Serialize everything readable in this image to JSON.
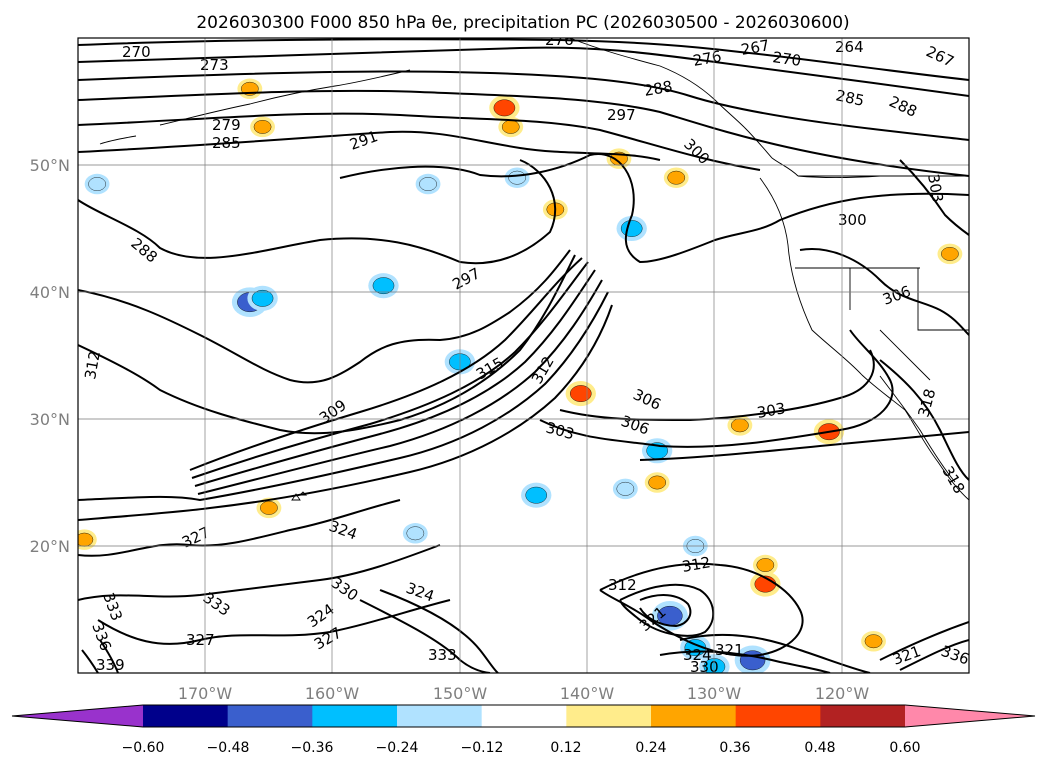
{
  "title": "2026030300 F000 850 hPa θe, precipitation PC (2026030500 - 2026030600)",
  "chart_data": {
    "type": "contour-map",
    "title": "2026030300 F000 850 hPa θe, precipitation PC (2026030500 - 2026030600)",
    "variable_contours": "850 hPa θe (K)",
    "variable_fill": "precipitation PC",
    "lon_range": [
      -180,
      -110
    ],
    "lat_range": [
      10,
      60
    ],
    "x_ticks": [
      "170°W",
      "160°W",
      "150°W",
      "140°W",
      "130°W",
      "120°W"
    ],
    "x_tick_values": [
      -170,
      -160,
      -150,
      -140,
      -130,
      -120
    ],
    "y_ticks": [
      "50°N",
      "40°N",
      "30°N",
      "20°N"
    ],
    "y_tick_values": [
      50,
      40,
      30,
      20
    ],
    "colorbar": {
      "ticks": [
        "−0.60",
        "−0.48",
        "−0.36",
        "−0.24",
        "−0.12",
        "0.12",
        "0.24",
        "0.36",
        "0.48",
        "0.60"
      ],
      "tick_values": [
        -0.6,
        -0.48,
        -0.36,
        -0.24,
        -0.12,
        0.12,
        0.24,
        0.36,
        0.48,
        0.6
      ],
      "colors": [
        "#9932CC",
        "#00008B",
        "#3A5FCD",
        "#00BFFF",
        "#B0E2FF",
        "#FFFFFF",
        "#FFEC8B",
        "#FFA500",
        "#FF4500",
        "#B22222",
        "#FF88AA"
      ],
      "extend": "both"
    },
    "contour_labels": [
      "270",
      "273",
      "276",
      "279",
      "285",
      "288",
      "291",
      "297",
      "300",
      "303",
      "306",
      "309",
      "312",
      "315",
      "318",
      "321",
      "324",
      "327",
      "330",
      "333",
      "336",
      "339",
      "264",
      "267"
    ],
    "precip_blobs": [
      {
        "lon": -178.5,
        "lat": 48.5,
        "value": -0.24
      },
      {
        "lon": -166.5,
        "lat": 39.2,
        "value": -0.48
      },
      {
        "lon": -165.5,
        "lat": 39.5,
        "value": -0.36
      },
      {
        "lon": -156,
        "lat": 40.5,
        "value": -0.36
      },
      {
        "lon": -152.5,
        "lat": 48.5,
        "value": -0.24
      },
      {
        "lon": -145.5,
        "lat": 49,
        "value": -0.24
      },
      {
        "lon": -136.5,
        "lat": 45,
        "value": -0.36
      },
      {
        "lon": -144,
        "lat": 24,
        "value": -0.36
      },
      {
        "lon": -137,
        "lat": 24.5,
        "value": -0.24
      },
      {
        "lon": -134.5,
        "lat": 27.5,
        "value": -0.36
      },
      {
        "lon": -131.5,
        "lat": 20,
        "value": -0.24
      },
      {
        "lon": -133.5,
        "lat": 14.5,
        "value": -0.48
      },
      {
        "lon": -131.5,
        "lat": 12,
        "value": -0.36
      },
      {
        "lon": -127,
        "lat": 11,
        "value": -0.48
      },
      {
        "lon": -130,
        "lat": 10.5,
        "value": -0.36
      },
      {
        "lon": -150,
        "lat": 34.5,
        "value": -0.36
      },
      {
        "lon": -153.5,
        "lat": 21,
        "value": -0.24
      },
      {
        "lon": -146.5,
        "lat": 54.5,
        "value": 0.36
      },
      {
        "lon": -146,
        "lat": 53,
        "value": 0.24
      },
      {
        "lon": -166.5,
        "lat": 56,
        "value": 0.24
      },
      {
        "lon": -165.5,
        "lat": 53,
        "value": 0.24
      },
      {
        "lon": -140.5,
        "lat": 32,
        "value": 0.36
      },
      {
        "lon": -126,
        "lat": 17,
        "value": 0.36
      },
      {
        "lon": -126,
        "lat": 18.5,
        "value": 0.24
      },
      {
        "lon": -133,
        "lat": 49,
        "value": 0.24
      },
      {
        "lon": -128,
        "lat": 29.5,
        "value": 0.24
      },
      {
        "lon": -121,
        "lat": 29,
        "value": 0.36
      },
      {
        "lon": -142.5,
        "lat": 46.5,
        "value": 0.24
      },
      {
        "lon": -137.5,
        "lat": 50.5,
        "value": 0.24
      },
      {
        "lon": -111.5,
        "lat": 43,
        "value": 0.24
      },
      {
        "lon": -165,
        "lat": 23,
        "value": 0.24
      },
      {
        "lon": -134.5,
        "lat": 25,
        "value": 0.24
      },
      {
        "lon": -117.5,
        "lat": 12.5,
        "value": 0.24
      },
      {
        "lon": -179.5,
        "lat": 20.5,
        "value": 0.24
      }
    ]
  }
}
